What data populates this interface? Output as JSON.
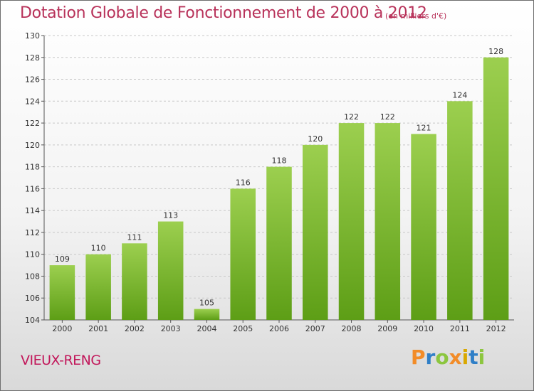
{
  "header": {
    "title": "Dotation Globale de Fonctionnement de 2000 à 2012",
    "subtitle": "(en milliers d'€)"
  },
  "footer": {
    "commune": "VIEUX-RENG",
    "brand": "Proxiti"
  },
  "colors": {
    "bar_top": "#9ccf4f",
    "bar_bottom": "#5d9e16",
    "title": "#b8325a",
    "brand_letters": [
      "#f28c28",
      "#2f7fc7",
      "#8cc63f",
      "#f28c28",
      "#d9a800",
      "#2f7fc7",
      "#8cc63f"
    ]
  },
  "chart_data": {
    "type": "bar",
    "title": "Dotation Globale de Fonctionnement de 2000 à 2012",
    "subtitle": "(en milliers d'€)",
    "categories": [
      "2000",
      "2001",
      "2002",
      "2003",
      "2004",
      "2005",
      "2006",
      "2007",
      "2008",
      "2009",
      "2010",
      "2011",
      "2012"
    ],
    "values": [
      109,
      110,
      111,
      113,
      105,
      116,
      118,
      120,
      122,
      122,
      121,
      124,
      128
    ],
    "ylim": [
      104,
      130
    ],
    "yticks": [
      104,
      106,
      108,
      110,
      112,
      114,
      116,
      118,
      120,
      122,
      124,
      126,
      128,
      130
    ],
    "grid": true,
    "legend": "none"
  }
}
